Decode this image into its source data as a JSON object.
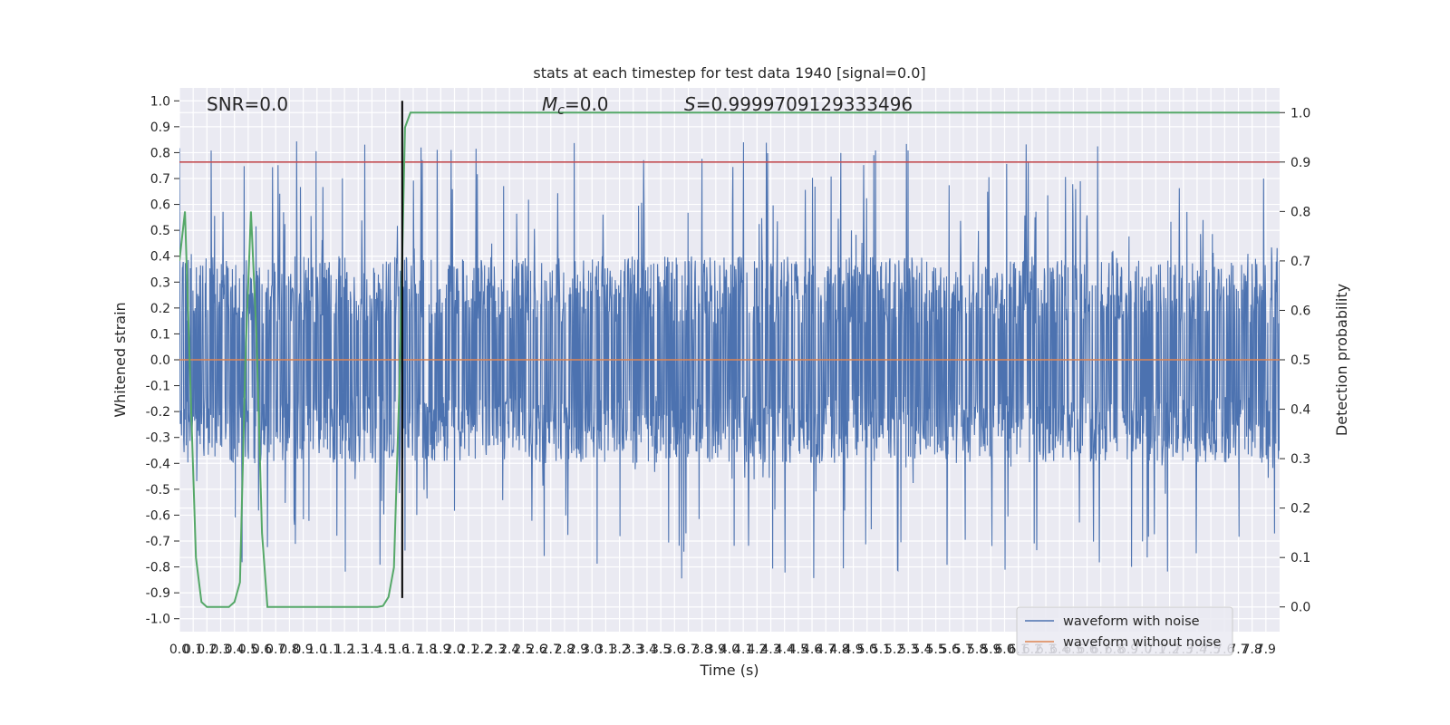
{
  "chart_data": {
    "type": "line",
    "title": "stats at each timestep for test data 1940 [signal=0.0]",
    "xlabel": "Time (s)",
    "ylabel": "Whitened strain",
    "ylabel_right": "Detection probability",
    "xlim": [
      0.0,
      8.0
    ],
    "ylim": [
      -1.05,
      1.05
    ],
    "ylim_right": [
      -0.05,
      1.05
    ],
    "grid": true,
    "legend_position": "lower-right",
    "x_ticks": [
      "0.0",
      "0.1",
      "0.2",
      "0.3",
      "0.4",
      "0.5",
      "0.6",
      "0.7",
      "0.8",
      "0.9",
      "1.0",
      "1.1",
      "1.2",
      "1.3",
      "1.4",
      "1.5",
      "1.6",
      "1.7",
      "1.8",
      "1.9",
      "2.0",
      "2.1",
      "2.2",
      "2.3",
      "2.4",
      "2.5",
      "2.6",
      "2.7",
      "2.8",
      "2.9",
      "3.0",
      "3.1",
      "3.2",
      "3.3",
      "3.4",
      "3.5",
      "3.6",
      "3.7",
      "3.8",
      "3.9",
      "4.0",
      "4.1",
      "4.2",
      "4.3",
      "4.4",
      "4.5",
      "4.6",
      "4.7",
      "4.8",
      "4.9",
      "5.0",
      "5.1",
      "5.2",
      "5.3",
      "5.4",
      "5.5",
      "5.6",
      "5.7",
      "5.8",
      "5.9",
      "6.0",
      "6.1",
      "6.2",
      "6.3",
      "6.4",
      "6.5",
      "6.6",
      "6.7",
      "6.8",
      "6.9",
      "7.0",
      "7.1",
      "7.2",
      "7.3",
      "7.4",
      "7.5",
      "7.6",
      "7.7",
      "7.8",
      "7.9"
    ],
    "y_ticks_left": [
      "-1.0",
      "-0.9",
      "-0.8",
      "-0.7",
      "-0.6",
      "-0.5",
      "-0.4",
      "-0.3",
      "-0.2",
      "-0.1",
      "0.0",
      "0.1",
      "0.2",
      "0.3",
      "0.4",
      "0.5",
      "0.6",
      "0.7",
      "0.8",
      "0.9",
      "1.0"
    ],
    "y_ticks_right": [
      "0.0",
      "0.1",
      "0.2",
      "0.3",
      "0.4",
      "0.5",
      "0.6",
      "0.7",
      "0.8",
      "0.9",
      "1.0"
    ],
    "annotations": {
      "snr": "SNR=0.0",
      "mc_symbol": "M",
      "mc_sub": "c",
      "mc_value": "=0.0",
      "s_symbol": "S",
      "s_value": "=0.9999709129333496"
    },
    "series": [
      {
        "name": "waveform with noise",
        "color": "#4c72b0",
        "axis": "left",
        "envelope_summary": {
          "typical_max": 0.4,
          "typical_min": -0.4,
          "peak_max": 1.0,
          "peak_min": -0.92
        }
      },
      {
        "name": "waveform without noise",
        "color": "#dd8452",
        "axis": "left",
        "x": [
          0.0,
          8.0
        ],
        "y": [
          0.0,
          0.0
        ]
      },
      {
        "color": "#55a868",
        "axis": "right",
        "x": [
          0.0,
          0.04,
          0.08,
          0.12,
          0.16,
          0.2,
          0.24,
          0.28,
          0.32,
          0.36,
          0.4,
          0.44,
          0.48,
          0.52,
          0.56,
          0.6,
          0.64,
          0.68,
          0.72,
          0.76,
          0.8,
          0.84,
          0.88,
          0.92,
          0.96,
          1.0,
          1.04,
          1.08,
          1.12,
          1.16,
          1.2,
          1.24,
          1.28,
          1.32,
          1.36,
          1.4,
          1.44,
          1.48,
          1.52,
          1.56,
          1.6,
          1.64,
          1.68,
          1.72,
          1.76,
          1.8,
          2.0,
          8.0
        ],
        "y": [
          0.7,
          0.8,
          0.45,
          0.1,
          0.01,
          0.0,
          0.0,
          0.0,
          0.0,
          0.0,
          0.01,
          0.05,
          0.5,
          0.8,
          0.55,
          0.15,
          0.0,
          0.0,
          0.0,
          0.0,
          0.0,
          0.0,
          0.0,
          0.0,
          0.0,
          0.0,
          0.0,
          0.0,
          0.0,
          0.0,
          0.0,
          0.0,
          0.0,
          0.0,
          0.0,
          0.0,
          0.0,
          0.002,
          0.02,
          0.08,
          0.45,
          0.97,
          1.0,
          1.0,
          1.0,
          1.0,
          1.0,
          1.0
        ]
      }
    ],
    "reference_lines": [
      {
        "orientation": "horizontal",
        "axis": "right",
        "value": 0.9,
        "color": "#c44e52"
      },
      {
        "orientation": "vertical",
        "value": 1.62,
        "color": "#000000"
      }
    ]
  }
}
